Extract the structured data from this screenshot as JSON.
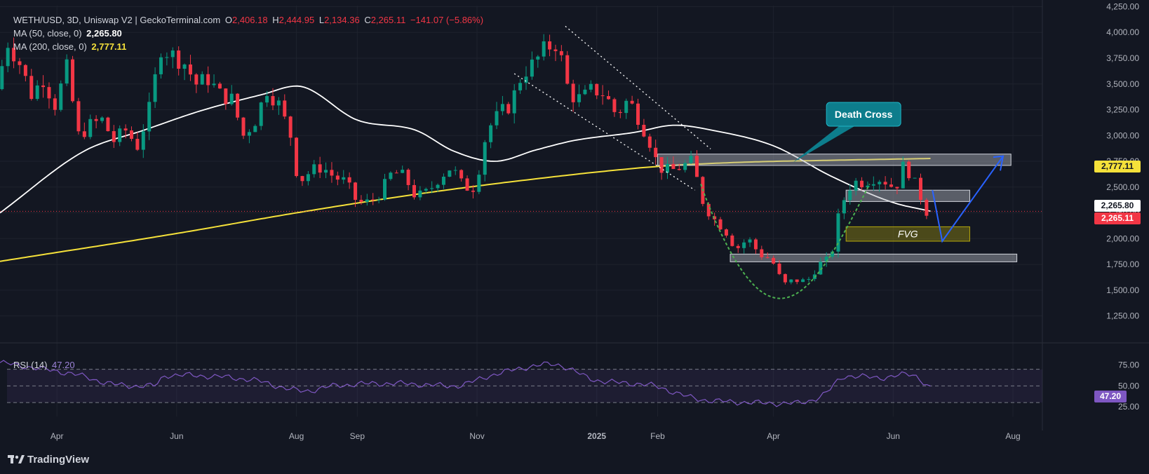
{
  "legend": {
    "symbol": "WETH/USD, 3D, Uniswap V2 | GeckoTerminal.com",
    "o_label": "O",
    "o_value": "2,406.18",
    "h_label": "H",
    "h_value": "2,444.95",
    "l_label": "L",
    "l_value": "2,134.36",
    "c_label": "C",
    "c_value": "2,265.11",
    "change": "−141.07 (−5.86%)",
    "ma50_label": "MA (50, close, 0)",
    "ma50_value": "2,265.80",
    "ma200_label": "MA (200, close, 0)",
    "ma200_value": "2,777.11",
    "rsi_label": "RSI (14)",
    "rsi_value": "47.20"
  },
  "badges": {
    "ma200": "2,777.11",
    "ma50": "2,265.80",
    "close": "2,265.11",
    "rsi": "47.20"
  },
  "annotations": {
    "death_cross": "Death Cross",
    "fvg": "FVG"
  },
  "brand": "TradingView",
  "colors": {
    "background": "#131722",
    "up": "#089981",
    "down": "#f23645",
    "ma50": "#ffffff",
    "ma200": "#f5e13a",
    "rsi": "#7e57c2",
    "projection": "#2962ff",
    "cup": "#4caf50",
    "callout": "#0d7d8c"
  },
  "chart_data": {
    "type": "candlestick",
    "price_axis": {
      "ticks": [
        1250,
        1500,
        1750,
        2000,
        2250,
        2500,
        2750,
        3000,
        3250,
        3500,
        3750,
        4000,
        4250
      ],
      "tick_labels": [
        "1,250.00",
        "1,500.00",
        "1,750.00",
        "2,000.00",
        "2,250.00",
        "2,500.00",
        "2,750.00",
        "3,000.00",
        "3,250.00",
        "3,500.00",
        "3,750.00",
        "4,000.00",
        "4,250.00"
      ],
      "range": [
        1050,
        4260
      ]
    },
    "time_axis": {
      "labels": [
        {
          "text": "Apr",
          "date": "2024-04-01"
        },
        {
          "text": "Jun",
          "date": "2024-06-01"
        },
        {
          "text": "Aug",
          "date": "2024-08-01"
        },
        {
          "text": "Sep",
          "date": "2024-09-01"
        },
        {
          "text": "Nov",
          "date": "2024-11-01"
        },
        {
          "text": "2025",
          "date": "2025-01-01",
          "bold": true
        },
        {
          "text": "Feb",
          "date": "2025-02-01"
        },
        {
          "text": "Apr",
          "date": "2025-04-01"
        },
        {
          "text": "Jun",
          "date": "2025-06-01"
        },
        {
          "text": "Aug",
          "date": "2025-08-01"
        }
      ],
      "range": [
        "2024-03-03",
        "2025-08-16"
      ]
    },
    "rsi_axis": {
      "ticks": [
        25,
        50,
        75
      ],
      "tick_labels": [
        "25.00",
        "50.00",
        "75.00"
      ],
      "bands": [
        30,
        50,
        70
      ],
      "range": [
        20,
        95
      ]
    },
    "price_path": [
      [
        "2024-03-04",
        3450
      ],
      [
        "2024-03-10",
        3900
      ],
      [
        "2024-03-16",
        3700
      ],
      [
        "2024-03-22",
        3400
      ],
      [
        "2024-03-28",
        3550
      ],
      [
        "2024-04-03",
        3300
      ],
      [
        "2024-04-09",
        3650
      ],
      [
        "2024-04-15",
        3000
      ],
      [
        "2024-04-21",
        3100
      ],
      [
        "2024-04-27",
        3150
      ],
      [
        "2024-05-03",
        2950
      ],
      [
        "2024-05-09",
        3050
      ],
      [
        "2024-05-15",
        2900
      ],
      [
        "2024-05-21",
        3250
      ],
      [
        "2024-05-27",
        3850
      ],
      [
        "2024-06-02",
        3780
      ],
      [
        "2024-06-08",
        3700
      ],
      [
        "2024-06-14",
        3500
      ],
      [
        "2024-06-20",
        3550
      ],
      [
        "2024-06-26",
        3400
      ],
      [
        "2024-07-02",
        3350
      ],
      [
        "2024-07-08",
        3000
      ],
      [
        "2024-07-14",
        3150
      ],
      [
        "2024-07-20",
        3450
      ],
      [
        "2024-07-26",
        3300
      ],
      [
        "2024-08-01",
        3000
      ],
      [
        "2024-08-05",
        2550
      ],
      [
        "2024-08-11",
        2650
      ],
      [
        "2024-08-17",
        2700
      ],
      [
        "2024-08-23",
        2600
      ],
      [
        "2024-08-29",
        2550
      ],
      [
        "2024-09-04",
        2350
      ],
      [
        "2024-09-10",
        2350
      ],
      [
        "2024-09-16",
        2450
      ],
      [
        "2024-09-22",
        2650
      ],
      [
        "2024-09-28",
        2600
      ],
      [
        "2024-10-04",
        2400
      ],
      [
        "2024-10-10",
        2450
      ],
      [
        "2024-10-16",
        2600
      ],
      [
        "2024-10-22",
        2700
      ],
      [
        "2024-10-28",
        2500
      ],
      [
        "2024-11-03",
        2500
      ],
      [
        "2024-11-09",
        3050
      ],
      [
        "2024-11-15",
        3200
      ],
      [
        "2024-11-21",
        3300
      ],
      [
        "2024-11-27",
        3600
      ],
      [
        "2024-12-03",
        3700
      ],
      [
        "2024-12-09",
        3850
      ],
      [
        "2024-12-15",
        3900
      ],
      [
        "2024-12-21",
        3400
      ],
      [
        "2024-12-27",
        3350
      ],
      [
        "2025-01-02",
        3450
      ],
      [
        "2025-01-08",
        3400
      ],
      [
        "2025-01-14",
        3200
      ],
      [
        "2025-01-20",
        3350
      ],
      [
        "2025-01-26",
        3150
      ],
      [
        "2025-02-01",
        2900
      ],
      [
        "2025-02-04",
        2700
      ],
      [
        "2025-02-10",
        2650
      ],
      [
        "2025-02-16",
        2700
      ],
      [
        "2025-02-22",
        2750
      ],
      [
        "2025-02-26",
        2400
      ],
      [
        "2025-03-04",
        2200
      ],
      [
        "2025-03-10",
        2100
      ],
      [
        "2025-03-16",
        1900
      ],
      [
        "2025-03-22",
        2000
      ],
      [
        "2025-03-28",
        1850
      ],
      [
        "2025-04-03",
        1800
      ],
      [
        "2025-04-09",
        1550
      ],
      [
        "2025-04-15",
        1600
      ],
      [
        "2025-04-21",
        1580
      ],
      [
        "2025-04-27",
        1750
      ],
      [
        "2025-05-03",
        1800
      ],
      [
        "2025-05-08",
        2300
      ],
      [
        "2025-05-14",
        2550
      ],
      [
        "2025-05-20",
        2550
      ],
      [
        "2025-05-26",
        2600
      ],
      [
        "2025-06-01",
        2550
      ],
      [
        "2025-06-05",
        2480
      ],
      [
        "2025-06-10",
        2750
      ],
      [
        "2025-06-14",
        2550
      ],
      [
        "2025-06-17",
        2480
      ],
      [
        "2025-06-20",
        2265
      ]
    ],
    "series": [
      {
        "name": "MA (50, close, 0)",
        "x": [
          "2024-03-03",
          "2024-04-15",
          "2024-05-15",
          "2024-06-15",
          "2024-07-15",
          "2024-08-01",
          "2024-09-01",
          "2024-10-01",
          "2024-10-20",
          "2024-11-10",
          "2024-12-01",
          "2024-12-20",
          "2025-01-20",
          "2025-02-10",
          "2025-03-01",
          "2025-04-01",
          "2025-05-01",
          "2025-06-01",
          "2025-06-20"
        ],
        "values": [
          2250,
          2850,
          3050,
          3250,
          3400,
          3480,
          3150,
          3050,
          2850,
          2750,
          2860,
          2950,
          3030,
          3100,
          3050,
          2900,
          2600,
          2350,
          2265.8
        ]
      },
      {
        "name": "MA (200, close, 0)",
        "x": [
          "2024-03-03",
          "2024-06-01",
          "2024-08-01",
          "2024-10-01",
          "2024-12-01",
          "2025-02-01",
          "2025-03-15",
          "2025-05-01",
          "2025-06-20"
        ],
        "values": [
          1780,
          2050,
          2250,
          2430,
          2580,
          2700,
          2740,
          2760,
          2777.11
        ]
      },
      {
        "name": "RSI (14)",
        "x": [
          "2024-03-03",
          "2024-03-20",
          "2024-04-10",
          "2024-04-30",
          "2024-05-20",
          "2024-05-27",
          "2024-06-15",
          "2024-07-10",
          "2024-08-05",
          "2024-08-20",
          "2024-09-20",
          "2024-10-20",
          "2024-11-10",
          "2024-12-10",
          "2024-12-30",
          "2025-01-30",
          "2025-02-20",
          "2025-03-20",
          "2025-04-10",
          "2025-04-27",
          "2025-05-08",
          "2025-05-25",
          "2025-06-10",
          "2025-06-20"
        ],
        "values": [
          78,
          72,
          64,
          52,
          50,
          63,
          62,
          57,
          44,
          50,
          53,
          50,
          64,
          76,
          58,
          50,
          35,
          30,
          29,
          40,
          62,
          60,
          64,
          47.2
        ]
      }
    ],
    "levels": [
      {
        "name": "ma50-close-line",
        "value": 2265.11
      }
    ]
  }
}
